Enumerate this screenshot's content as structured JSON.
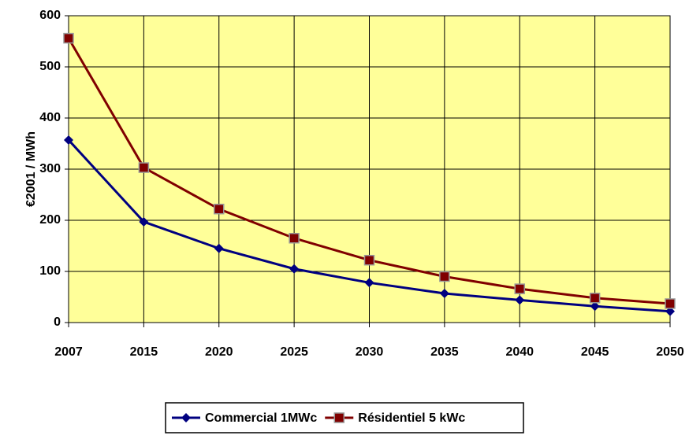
{
  "chart_data": {
    "type": "line",
    "ylabel": "€2001 / MWh",
    "categories": [
      "2007",
      "2015",
      "2020",
      "2025",
      "2030",
      "2035",
      "2040",
      "2045",
      "2050"
    ],
    "series": [
      {
        "name": "Commercial 1MWc",
        "color": "#000080",
        "marker": "diamond",
        "values": [
          357,
          197,
          145,
          105,
          78,
          57,
          44,
          32,
          22
        ]
      },
      {
        "name": "Résidentiel 5 kWc",
        "color": "#800000",
        "marker": "square",
        "values": [
          556,
          303,
          222,
          165,
          122,
          90,
          66,
          48,
          37
        ]
      }
    ],
    "ylim": [
      0,
      600
    ],
    "yticks": [
      0,
      100,
      200,
      300,
      400,
      500,
      600
    ],
    "grid": true,
    "background": "#ffff99",
    "legend": "bottom"
  }
}
